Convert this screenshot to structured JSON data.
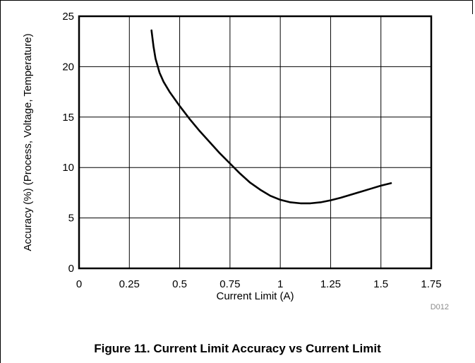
{
  "caption": "Figure 11. Current Limit Accuracy vs Current Limit",
  "figure_code": "D012",
  "chart_data": {
    "type": "line",
    "title": "",
    "xlabel": "Current Limit (A)",
    "ylabel": "Accuracy (%) (Process, Voltage, Temperature)",
    "xlim": [
      0,
      1.75
    ],
    "ylim": [
      0,
      25
    ],
    "xticks": [
      0,
      0.25,
      0.5,
      0.75,
      1,
      1.25,
      1.5,
      1.75
    ],
    "xtick_labels": [
      "0",
      "0.25",
      "0.5",
      "0.75",
      "1",
      "1.25",
      "1.5",
      "1.75"
    ],
    "yticks": [
      0,
      5,
      10,
      15,
      20,
      25
    ],
    "ytick_labels": [
      "0",
      "5",
      "10",
      "15",
      "20",
      "25"
    ],
    "grid": true,
    "line_color": "#000000",
    "series": [
      {
        "x": [
          0.36,
          0.37,
          0.38,
          0.4,
          0.42,
          0.45,
          0.5,
          0.55,
          0.6,
          0.65,
          0.7,
          0.75,
          0.8,
          0.85,
          0.9,
          0.95,
          1.0,
          1.05,
          1.1,
          1.15,
          1.2,
          1.25,
          1.3,
          1.35,
          1.4,
          1.45,
          1.5,
          1.55
        ],
        "y": [
          23.6,
          22.0,
          20.8,
          19.4,
          18.5,
          17.5,
          16.1,
          14.8,
          13.6,
          12.5,
          11.4,
          10.4,
          9.4,
          8.5,
          7.8,
          7.2,
          6.8,
          6.55,
          6.45,
          6.45,
          6.55,
          6.75,
          7.0,
          7.3,
          7.6,
          7.9,
          8.2,
          8.45
        ]
      }
    ]
  }
}
